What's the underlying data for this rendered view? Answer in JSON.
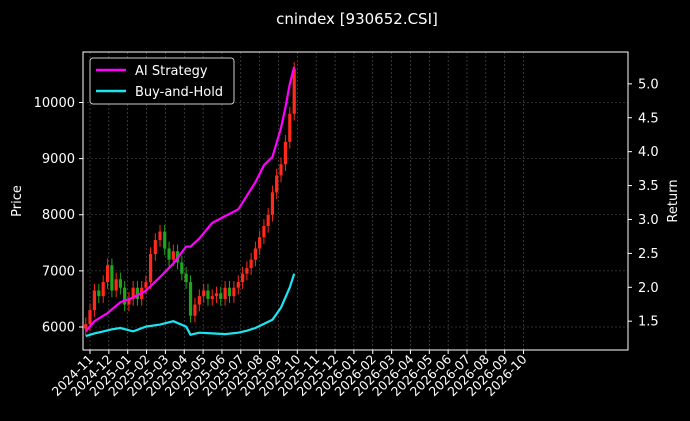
{
  "chart_data": {
    "type": "line",
    "title": "cnindex [930652.CSI]",
    "ylabel_left": "Price",
    "ylabel_right": "Return",
    "y_left_ticks": [
      6000,
      7000,
      8000,
      9000,
      10000
    ],
    "y_left_lim": [
      5590,
      10900
    ],
    "y_right_ticks": [
      "1.5",
      "2.0",
      "2.5",
      "3.0",
      "3.5",
      "4.0",
      "4.5",
      "5.0"
    ],
    "y_right_lim": [
      1.075,
      5.47
    ],
    "x_ticks": [
      "2024-11",
      "2024-12",
      "2025-01",
      "2025-02",
      "2025-03",
      "2025-04",
      "2025-05",
      "2025-06",
      "2025-07",
      "2025-08",
      "2025-09",
      "2025-10",
      "2025-11",
      "2025-12",
      "2026-01",
      "2026-02",
      "2026-03",
      "2026-04",
      "2026-05",
      "2026-06",
      "2026-07",
      "2026-08",
      "2026-09",
      "2026-10"
    ],
    "grid": true,
    "legend_position": "top-left",
    "colors": {
      "background": "#000000",
      "up_candle": "#ff2a1a",
      "down_candle": "#1fa51f",
      "ai_strategy": "#ff00ff",
      "buy_and_hold": "#19e6f0"
    },
    "price_series": {
      "name": "",
      "x": [
        "2024-10-25",
        "2024-11-01",
        "2024-11-08",
        "2024-11-15",
        "2024-11-22",
        "2024-11-29",
        "2024-12-06",
        "2024-12-13",
        "2024-12-20",
        "2024-12-27",
        "2025-01-03",
        "2025-01-10",
        "2025-01-17",
        "2025-01-24",
        "2025-01-31",
        "2025-02-07",
        "2025-02-14",
        "2025-02-21",
        "2025-02-28",
        "2025-03-07",
        "2025-03-14",
        "2025-03-21",
        "2025-03-28",
        "2025-04-04",
        "2025-04-11",
        "2025-04-18",
        "2025-04-25",
        "2025-05-02",
        "2025-05-09",
        "2025-05-16",
        "2025-05-23",
        "2025-05-30",
        "2025-06-06",
        "2025-06-13",
        "2025-06-20",
        "2025-06-27",
        "2025-07-04",
        "2025-07-11",
        "2025-07-18",
        "2025-07-25",
        "2025-08-01",
        "2025-08-08",
        "2025-08-15",
        "2025-08-22",
        "2025-08-29",
        "2025-09-05",
        "2025-09-12",
        "2025-09-19",
        "2025-09-26"
      ],
      "close": [
        6050,
        6300,
        6650,
        6550,
        6800,
        7100,
        6650,
        6850,
        6700,
        6400,
        6500,
        6700,
        6500,
        6700,
        6800,
        7300,
        7550,
        7700,
        7400,
        7200,
        7350,
        7150,
        6950,
        6800,
        6200,
        6400,
        6550,
        6650,
        6500,
        6550,
        6600,
        6500,
        6700,
        6550,
        6700,
        6800,
        6950,
        7050,
        7200,
        7400,
        7600,
        7800,
        8000,
        8400,
        8700,
        8900,
        9300,
        9800,
        10600
      ]
    },
    "series": [
      {
        "name": "AI Strategy",
        "x": [
          "2024-10-25",
          "2024-11-08",
          "2024-11-29",
          "2024-12-20",
          "2025-01-10",
          "2025-01-31",
          "2025-02-21",
          "2025-03-14",
          "2025-04-04",
          "2025-04-11",
          "2025-04-25",
          "2025-05-16",
          "2025-06-06",
          "2025-06-27",
          "2025-07-11",
          "2025-07-25",
          "2025-08-08",
          "2025-08-22",
          "2025-09-05",
          "2025-09-12",
          "2025-09-19",
          "2025-09-26"
        ],
        "values": [
          1.35,
          1.5,
          1.62,
          1.78,
          1.85,
          1.95,
          2.15,
          2.35,
          2.6,
          2.6,
          2.72,
          2.95,
          3.05,
          3.15,
          3.35,
          3.55,
          3.8,
          3.92,
          4.35,
          4.65,
          5.0,
          5.25
        ]
      },
      {
        "name": "Buy-and-Hold",
        "x": [
          "2024-10-25",
          "2024-11-08",
          "2024-11-22",
          "2024-12-06",
          "2024-12-20",
          "2025-01-10",
          "2025-01-31",
          "2025-02-21",
          "2025-03-14",
          "2025-04-04",
          "2025-04-11",
          "2025-04-25",
          "2025-05-16",
          "2025-06-06",
          "2025-06-27",
          "2025-07-11",
          "2025-07-25",
          "2025-08-08",
          "2025-08-22",
          "2025-09-05",
          "2025-09-12",
          "2025-09-19",
          "2025-09-26"
        ],
        "values": [
          1.28,
          1.32,
          1.35,
          1.38,
          1.4,
          1.35,
          1.42,
          1.45,
          1.5,
          1.42,
          1.3,
          1.33,
          1.32,
          1.31,
          1.33,
          1.36,
          1.4,
          1.46,
          1.52,
          1.7,
          1.85,
          2.0,
          2.2
        ]
      }
    ]
  }
}
